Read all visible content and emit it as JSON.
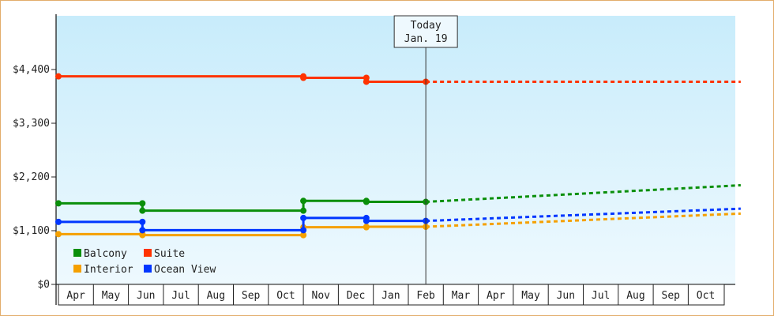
{
  "chart_data": {
    "type": "line",
    "title": "",
    "xlabel": "",
    "ylabel": "",
    "ylim": [
      0,
      5500
    ],
    "y_ticks": [
      "$0",
      "$1,100",
      "$2,200",
      "$3,300",
      "$4,400"
    ],
    "y_tick_values": [
      0,
      1100,
      2200,
      3300,
      4400
    ],
    "x_tick_labels": [
      "Apr",
      "May",
      "Jun",
      "Jul",
      "Aug",
      "Sep",
      "Oct",
      "Nov",
      "Dec",
      "Jan",
      "Feb",
      "Mar",
      "Apr",
      "May",
      "Jun",
      "Jul",
      "Aug",
      "Sep",
      "Oct"
    ],
    "today_marker": {
      "line1": "Today",
      "line2": "Jan. 19",
      "x": 10.5
    },
    "grid": false,
    "legend_position": "bottom-left",
    "colors": {
      "Balcony": "#0a8f0a",
      "Suite": "#ff3300",
      "Interior": "#f5a000",
      "Ocean View": "#0036ff"
    },
    "series": [
      {
        "name": "Balcony",
        "history": [
          [
            0,
            1660
          ],
          [
            2.4,
            1660
          ],
          [
            2.4,
            1510
          ],
          [
            7.0,
            1510
          ],
          [
            7.0,
            1710
          ],
          [
            8.8,
            1710
          ],
          [
            8.8,
            1690
          ],
          [
            10.5,
            1690
          ]
        ],
        "forecast": [
          [
            10.5,
            1690
          ],
          [
            19.5,
            2030
          ]
        ]
      },
      {
        "name": "Suite",
        "history": [
          [
            0,
            4260
          ],
          [
            7.0,
            4260
          ],
          [
            7.0,
            4230
          ],
          [
            8.8,
            4230
          ],
          [
            8.8,
            4150
          ],
          [
            10.5,
            4150
          ]
        ],
        "forecast": [
          [
            10.5,
            4150
          ],
          [
            19.5,
            4150
          ]
        ]
      },
      {
        "name": "Interior",
        "history": [
          [
            0,
            1030
          ],
          [
            2.4,
            1030
          ],
          [
            2.4,
            1010
          ],
          [
            7.0,
            1010
          ],
          [
            7.0,
            1010
          ],
          [
            7.0,
            1170
          ],
          [
            8.8,
            1170
          ],
          [
            8.8,
            1180
          ],
          [
            10.5,
            1180
          ]
        ],
        "forecast": [
          [
            10.5,
            1180
          ],
          [
            19.5,
            1450
          ]
        ]
      },
      {
        "name": "Ocean View",
        "history": [
          [
            0,
            1280
          ],
          [
            2.4,
            1280
          ],
          [
            2.4,
            1110
          ],
          [
            7.0,
            1110
          ],
          [
            7.0,
            1360
          ],
          [
            8.8,
            1360
          ],
          [
            8.8,
            1300
          ],
          [
            10.5,
            1300
          ]
        ],
        "forecast": [
          [
            10.5,
            1300
          ],
          [
            19.5,
            1550
          ]
        ]
      }
    ],
    "legend": [
      "Balcony",
      "Suite",
      "Interior",
      "Ocean View"
    ]
  }
}
